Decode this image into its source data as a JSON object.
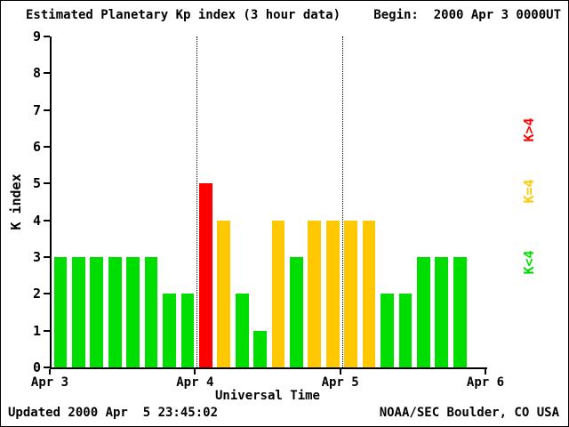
{
  "header": {
    "title": "Estimated Planetary Kp index (3 hour data)",
    "begin": "Begin:  2000 Apr 3 0000UT"
  },
  "footer": {
    "updated": "Updated 2000 Apr  5 23:45:02",
    "credit": "NOAA/SEC Boulder, CO USA"
  },
  "chart_data": {
    "type": "bar",
    "title": "Estimated Planetary Kp index (3 hour data)",
    "xlabel": "Universal Time",
    "ylabel": "K index",
    "ylim": [
      0,
      9
    ],
    "yticks": [
      0,
      1,
      2,
      3,
      4,
      5,
      6,
      7,
      8,
      9
    ],
    "xticks": [
      "Apr 3",
      "Apr 4",
      "Apr 5",
      "Apr 6"
    ],
    "days": 3,
    "slots_per_day": 8,
    "hours_per_bar": 3,
    "values": [
      3,
      3,
      3,
      3,
      3,
      3,
      2,
      2,
      5,
      4,
      2,
      1,
      4,
      3,
      4,
      4,
      4,
      4,
      2,
      2,
      3,
      3,
      3
    ],
    "bar_colors": {
      "below4": "#00DD00",
      "equal4": "#FFC800",
      "above4": "#FF0000"
    },
    "legend": [
      {
        "label": "K>4",
        "color": "#FF0000"
      },
      {
        "label": "K=4",
        "color": "#FFC800"
      },
      {
        "label": "K<4",
        "color": "#00DD00"
      }
    ],
    "gridlines": "dotted vertical lines at day boundaries Apr 4 and Apr 5",
    "legend_position": "right"
  }
}
